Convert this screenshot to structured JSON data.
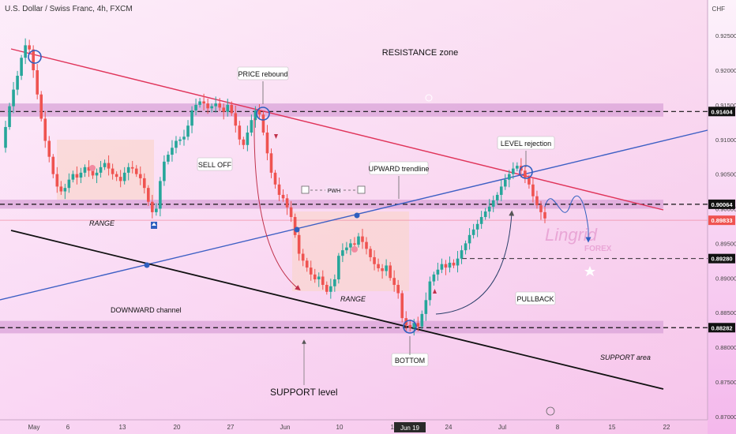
{
  "header": {
    "title": "U.S. Dollar / Swiss Franc, 4h, FXCM",
    "currency": "CHF"
  },
  "chart_data": {
    "type": "candlestick",
    "title": "U.S. Dollar / Swiss Franc, 4h, FXCM",
    "y_ticks": [
      0.925,
      0.92,
      0.915,
      0.91,
      0.905,
      0.9,
      0.895,
      0.89,
      0.885,
      0.88,
      0.875,
      0.87
    ],
    "y_tick_labels": [
      "0.92500",
      "0.92000",
      "0.91500",
      "0.91000",
      "0.90500",
      "0.90000",
      "0.89500",
      "0.89000",
      "0.88500",
      "0.88000",
      "0.87500",
      "0.87000"
    ],
    "ylim": [
      0.8695,
      0.9275
    ],
    "x_tick_labels": [
      "May",
      "6",
      "13",
      "20",
      "27",
      "Jun",
      "10",
      "17",
      "Jun 19",
      "24",
      "Jul",
      "8",
      "15",
      "22"
    ],
    "price_levels": [
      {
        "value": 0.91404,
        "label": "0.91404",
        "color": "#111111"
      },
      {
        "value": 0.90064,
        "label": "0.90064",
        "color": "#111111"
      },
      {
        "value": 0.89833,
        "label": "0.89833",
        "color": "#ef5350"
      },
      {
        "value": 0.8928,
        "label": "0.89280",
        "color": "#111111"
      },
      {
        "value": 0.88282,
        "label": "0.88282",
        "color": "#111111"
      }
    ],
    "series": [
      {
        "values": [
          0.9088,
          0.9118,
          0.9148,
          0.9172,
          0.9192,
          0.9218,
          0.9236,
          0.923,
          0.92,
          0.9165,
          0.913,
          0.9098,
          0.9075,
          0.905,
          0.9032,
          0.9025,
          0.903,
          0.9042,
          0.905,
          0.9045,
          0.9052,
          0.906,
          0.9055,
          0.9048,
          0.9052,
          0.906,
          0.9066,
          0.9058,
          0.905,
          0.9046,
          0.904,
          0.9052,
          0.906,
          0.9058,
          0.905,
          0.9044,
          0.903,
          0.901,
          0.8995,
          0.9,
          0.904,
          0.9068,
          0.9078,
          0.9088,
          0.9098,
          0.91,
          0.9104,
          0.912,
          0.9142,
          0.915,
          0.9155,
          0.9152,
          0.9145,
          0.9148,
          0.9152,
          0.9146,
          0.914,
          0.915,
          0.9138,
          0.912,
          0.91,
          0.9092,
          0.911,
          0.9128,
          0.9142,
          0.9136,
          0.911,
          0.908,
          0.9052,
          0.9035,
          0.902,
          0.9015,
          0.9002,
          0.8988,
          0.8962,
          0.8935,
          0.8925,
          0.8915,
          0.8905,
          0.8898,
          0.8902,
          0.889,
          0.888,
          0.8888,
          0.8898,
          0.8932,
          0.894,
          0.8944,
          0.895,
          0.8948,
          0.896,
          0.8952,
          0.8942,
          0.893,
          0.892,
          0.8914,
          0.891,
          0.8918,
          0.89,
          0.889,
          0.8878,
          0.8842,
          0.8832,
          0.8828,
          0.8835,
          0.883,
          0.8848,
          0.8868,
          0.8895,
          0.8905,
          0.8912,
          0.892,
          0.8915,
          0.8922,
          0.8918,
          0.8928,
          0.894,
          0.895,
          0.8962,
          0.897,
          0.8978,
          0.8988,
          0.8996,
          0.9003,
          0.9012,
          0.902,
          0.9032,
          0.9042,
          0.905,
          0.9058,
          0.9062,
          0.9055,
          0.9045,
          0.9035,
          0.9018,
          0.9005,
          0.8995,
          0.8986
        ]
      }
    ],
    "zones": [
      {
        "name": "upper-zone",
        "from": 0.9133,
        "to": 0.9152
      },
      {
        "name": "middle-zone",
        "from": 0.9,
        "to": 0.9013
      },
      {
        "name": "lower-zone",
        "from": 0.882,
        "to": 0.8838
      }
    ],
    "annotations": {
      "resistance_zone": "RESISTANCE zone",
      "price_rebound": "PRICE rebound",
      "sell_off": "SELL OFF",
      "upward_trendline": "UPWARD trendline",
      "level_rejection": "LEVEL rejection",
      "pwh": "PWH",
      "range_1": "RANGE",
      "range_2": "RANGE",
      "downward_channel": "DOWNWARD channel",
      "pullback": "PULLBACK",
      "bottom": "BOTTOM",
      "support_area": "SUPPORT area",
      "support_level": "SUPPORT level",
      "brand": "Lingrid",
      "brand_sub": "FOREX"
    },
    "colors": {
      "bull": "#26a69a",
      "bear": "#ef5350",
      "resistance_line": "#e0345a",
      "trendline": "#3d5fc4",
      "channel": "#111111",
      "zone": "#d9a3d8",
      "box": "#f9d6cf"
    }
  }
}
